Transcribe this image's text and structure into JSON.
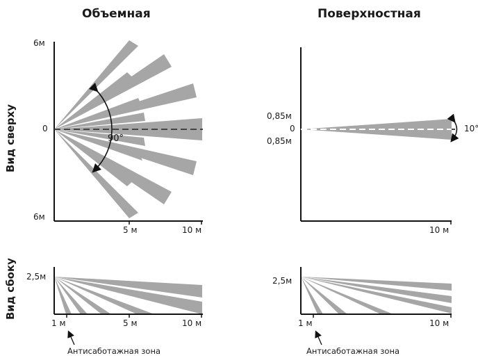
{
  "titles": {
    "volumetric": "Объемная",
    "surface": "Поверхностная"
  },
  "row_labels": {
    "top_view": "Вид сверху",
    "side_view": "Вид сбоку"
  },
  "top_left": {
    "y_top": "6м",
    "y_zero": "0",
    "y_bottom": "6м",
    "angle": "90°",
    "x_5": "5 м",
    "x_10": "10 м"
  },
  "top_right": {
    "y_upper": "0,85м",
    "y_zero": "0",
    "y_lower": "0,85м",
    "angle": "10°",
    "x_10": "10 м"
  },
  "side_left": {
    "y_height": "2,5м",
    "x_1": "1 м",
    "x_5": "5 м",
    "x_10": "10 м",
    "note": "Антисаботажная зона"
  },
  "side_right": {
    "y_height": "2,5м",
    "x_1": "1 м",
    "x_10": "10 м",
    "note": "Антисаботажная зона"
  },
  "colors": {
    "beam": "#a6a6a6",
    "axis": "#111111",
    "dash": "#ffffff"
  },
  "icons": {
    "angle_arrow": "double-arrow-arc-icon",
    "pointer": "up-arrow-icon"
  }
}
